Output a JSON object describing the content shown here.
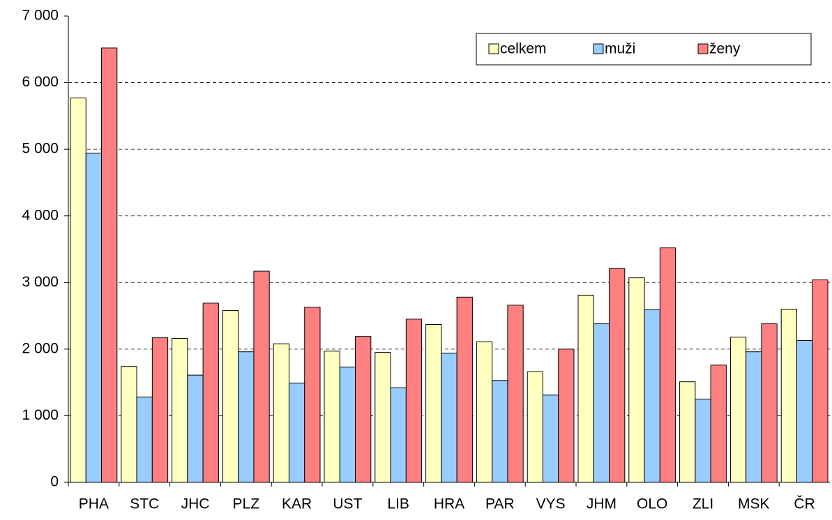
{
  "chart_data": {
    "type": "bar",
    "categories": [
      "PHA",
      "STC",
      "JHC",
      "PLZ",
      "KAR",
      "UST",
      "LIB",
      "HRA",
      "PAR",
      "VYS",
      "JHM",
      "OLO",
      "ZLI",
      "MSK",
      "ČR"
    ],
    "series": [
      {
        "name": "celkem",
        "color": "#ffffc0",
        "values": [
          5770,
          1740,
          2160,
          2580,
          2080,
          1970,
          1950,
          2370,
          2110,
          1660,
          2810,
          3070,
          1510,
          2180,
          2600
        ]
      },
      {
        "name": "muži",
        "color": "#99ccff",
        "values": [
          4940,
          1280,
          1610,
          1960,
          1490,
          1730,
          1420,
          1940,
          1530,
          1310,
          2380,
          2590,
          1250,
          1960,
          2130
        ]
      },
      {
        "name": "ženy",
        "color": "#ff8080",
        "values": [
          6520,
          2170,
          2690,
          3170,
          2630,
          2190,
          2450,
          2780,
          2660,
          2000,
          3210,
          3520,
          1760,
          2380,
          3040
        ]
      }
    ],
    "ylim": [
      0,
      7000
    ],
    "yticks": [
      0,
      {
        "value": 1000,
        "label": "1 000"
      },
      {
        "value": 2000,
        "label": "2 000"
      },
      {
        "value": 3000,
        "label": "3 000"
      },
      {
        "value": 4000,
        "label": "4 000"
      },
      {
        "value": 5000,
        "label": "5 000"
      },
      {
        "value": 6000,
        "label": "6 000"
      },
      {
        "value": 7000,
        "label": "7 000"
      }
    ],
    "grid": true,
    "legend": "top-right"
  }
}
